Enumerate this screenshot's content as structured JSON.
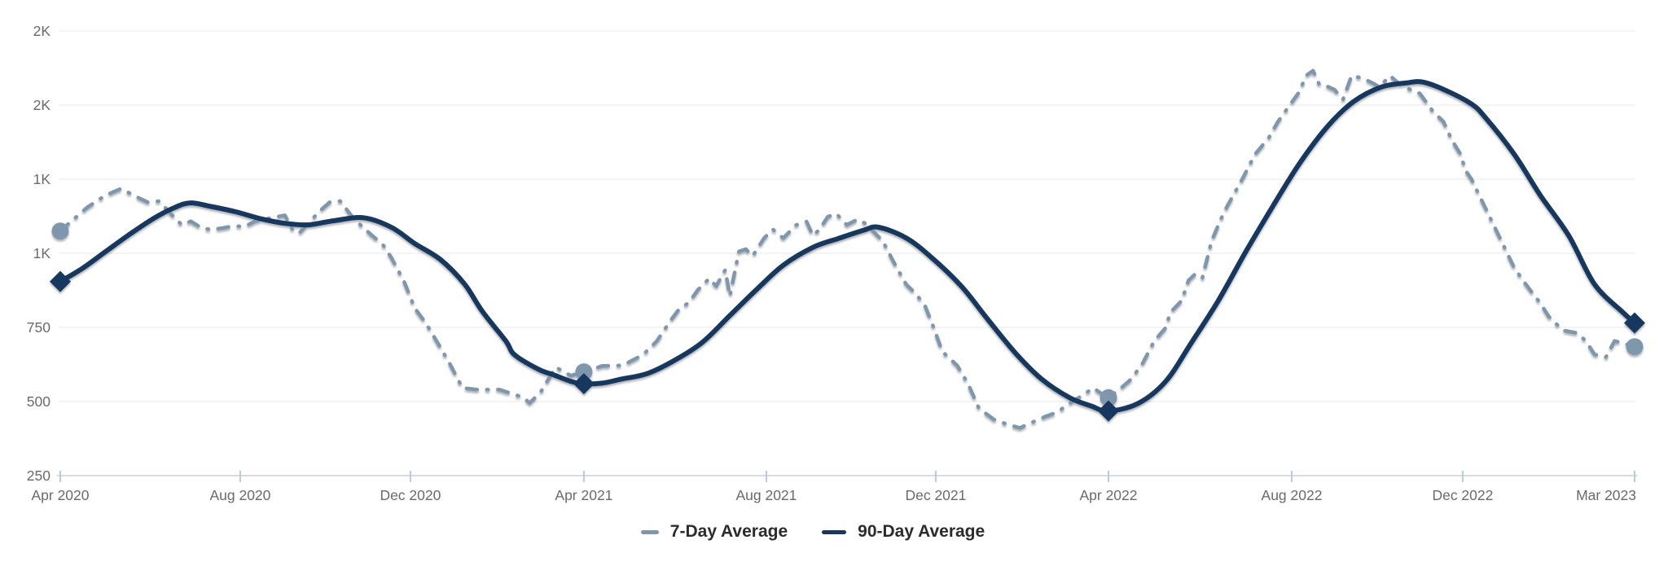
{
  "chart_data": {
    "type": "line",
    "title": "",
    "legend_position": "bottom-center",
    "x_axis": {
      "label": "",
      "ticks": [
        {
          "label": "Apr 2020",
          "month": 0,
          "pos": 0.0
        },
        {
          "label": "Aug 2020",
          "month": 4,
          "pos": 0.1143
        },
        {
          "label": "Dec 2020",
          "month": 8,
          "pos": 0.2224
        },
        {
          "label": "Apr 2021",
          "month": 12,
          "pos": 0.3326
        },
        {
          "label": "Aug 2021",
          "month": 16,
          "pos": 0.4485
        },
        {
          "label": "Dec 2021",
          "month": 20,
          "pos": 0.5561
        },
        {
          "label": "Apr 2022",
          "month": 24,
          "pos": 0.6658
        },
        {
          "label": "Aug 2022",
          "month": 28,
          "pos": 0.7822
        },
        {
          "label": "Dec 2022",
          "month": 32,
          "pos": 0.8908
        },
        {
          "label": "Mar 2023",
          "month": 35,
          "pos": 1.0
        }
      ]
    },
    "y_axis": {
      "min": 250,
      "max": 1750,
      "grid": true,
      "ticks": [
        {
          "value": 250,
          "label": "250"
        },
        {
          "value": 500,
          "label": "500"
        },
        {
          "value": 750,
          "label": "750"
        },
        {
          "value": 1000,
          "label": "1K"
        },
        {
          "value": 1250,
          "label": "1K"
        },
        {
          "value": 1500,
          "label": "2K"
        },
        {
          "value": 1750,
          "label": "2K"
        }
      ]
    },
    "series": [
      {
        "name": "7-Day Average",
        "style": "dashed",
        "color": "#7e97ac",
        "marker_shape": "circle",
        "markers": [
          [
            0,
            1075
          ],
          [
            12,
            600
          ],
          [
            24,
            513
          ],
          [
            35,
            685
          ]
        ],
        "points": [
          [
            0,
            1075
          ],
          [
            0.3,
            1115
          ],
          [
            0.6,
            1155
          ],
          [
            1.0,
            1195
          ],
          [
            1.35,
            1218
          ],
          [
            1.7,
            1190
          ],
          [
            1.95,
            1172
          ],
          [
            2.2,
            1176
          ],
          [
            2.45,
            1135
          ],
          [
            2.7,
            1096
          ],
          [
            2.9,
            1108
          ],
          [
            3.15,
            1085
          ],
          [
            3.35,
            1080
          ],
          [
            3.6,
            1085
          ],
          [
            3.85,
            1092
          ],
          [
            4.1,
            1090
          ],
          [
            4.35,
            1108
          ],
          [
            4.6,
            1116
          ],
          [
            4.85,
            1123
          ],
          [
            5.05,
            1128
          ],
          [
            5.25,
            1075
          ],
          [
            5.4,
            1070
          ],
          [
            5.65,
            1108
          ],
          [
            5.85,
            1140
          ],
          [
            6.1,
            1172
          ],
          [
            6.35,
            1176
          ],
          [
            6.65,
            1120
          ],
          [
            6.9,
            1086
          ],
          [
            7.1,
            1060
          ],
          [
            7.35,
            1030
          ],
          [
            7.55,
            986
          ],
          [
            7.85,
            905
          ],
          [
            8.1,
            815
          ],
          [
            8.35,
            766
          ],
          [
            8.6,
            705
          ],
          [
            8.9,
            630
          ],
          [
            9.2,
            546
          ],
          [
            9.55,
            540
          ],
          [
            10.05,
            540
          ],
          [
            10.35,
            526
          ],
          [
            10.6,
            514
          ],
          [
            10.75,
            495
          ],
          [
            11.0,
            531
          ],
          [
            11.35,
            616
          ],
          [
            11.7,
            587
          ],
          [
            12.0,
            600
          ],
          [
            12.4,
            620
          ],
          [
            12.85,
            622
          ],
          [
            13.3,
            658
          ],
          [
            13.6,
            704
          ],
          [
            13.9,
            773
          ],
          [
            14.1,
            814
          ],
          [
            14.3,
            833
          ],
          [
            14.5,
            877
          ],
          [
            14.75,
            915
          ],
          [
            14.9,
            889
          ],
          [
            15.1,
            944
          ],
          [
            15.2,
            855
          ],
          [
            15.4,
            1006
          ],
          [
            15.55,
            1014
          ],
          [
            15.7,
            991
          ],
          [
            15.95,
            1051
          ],
          [
            16.15,
            1081
          ],
          [
            16.4,
            1051
          ],
          [
            16.7,
            1095
          ],
          [
            16.95,
            1107
          ],
          [
            17.1,
            1060
          ],
          [
            17.25,
            1079
          ],
          [
            17.45,
            1123
          ],
          [
            17.65,
            1134
          ],
          [
            17.9,
            1096
          ],
          [
            18.15,
            1114
          ],
          [
            18.35,
            1100
          ],
          [
            18.75,
            1041
          ],
          [
            19.05,
            959
          ],
          [
            19.3,
            896
          ],
          [
            19.55,
            860
          ],
          [
            19.75,
            822
          ],
          [
            19.95,
            750
          ],
          [
            20.15,
            669
          ],
          [
            20.5,
            621
          ],
          [
            20.75,
            559
          ],
          [
            21.0,
            477
          ],
          [
            21.35,
            439
          ],
          [
            21.7,
            421
          ],
          [
            21.95,
            411
          ],
          [
            22.25,
            431
          ],
          [
            22.55,
            450
          ],
          [
            22.8,
            463
          ],
          [
            23.1,
            494
          ],
          [
            23.4,
            521
          ],
          [
            23.65,
            546
          ],
          [
            23.9,
            520
          ],
          [
            24.0,
            513
          ],
          [
            24.3,
            549
          ],
          [
            24.5,
            576
          ],
          [
            24.75,
            630
          ],
          [
            25.0,
            704
          ],
          [
            25.25,
            749
          ],
          [
            25.35,
            800
          ],
          [
            25.6,
            841
          ],
          [
            25.75,
            909
          ],
          [
            25.9,
            931
          ],
          [
            26.05,
            917
          ],
          [
            26.25,
            1041
          ],
          [
            26.45,
            1114
          ],
          [
            26.6,
            1161
          ],
          [
            26.9,
            1244
          ],
          [
            27.2,
            1334
          ],
          [
            27.5,
            1390
          ],
          [
            27.7,
            1444
          ],
          [
            27.95,
            1498
          ],
          [
            28.15,
            1539
          ],
          [
            28.35,
            1601
          ],
          [
            28.5,
            1616
          ],
          [
            28.65,
            1568
          ],
          [
            28.8,
            1565
          ],
          [
            29.0,
            1552
          ],
          [
            29.2,
            1519
          ],
          [
            29.4,
            1599
          ],
          [
            29.65,
            1591
          ],
          [
            29.9,
            1574
          ],
          [
            30.05,
            1561
          ],
          [
            30.3,
            1599
          ],
          [
            30.55,
            1567
          ],
          [
            30.75,
            1554
          ],
          [
            31.0,
            1539
          ],
          [
            31.3,
            1479
          ],
          [
            31.55,
            1444
          ],
          [
            31.75,
            1381
          ],
          [
            31.95,
            1334
          ],
          [
            32.05,
            1279
          ],
          [
            32.15,
            1251
          ],
          [
            32.4,
            1151
          ],
          [
            32.65,
            1051
          ],
          [
            32.9,
            951
          ],
          [
            33.1,
            896
          ],
          [
            33.35,
            833
          ],
          [
            33.5,
            787
          ],
          [
            33.75,
            740
          ],
          [
            34.0,
            731
          ],
          [
            34.15,
            704
          ],
          [
            34.3,
            659
          ],
          [
            34.5,
            650
          ],
          [
            34.65,
            704
          ],
          [
            34.85,
            694
          ],
          [
            35,
            685
          ]
        ]
      },
      {
        "name": "90-Day Average",
        "style": "solid",
        "color": "#17395f",
        "marker_shape": "diamond",
        "markers": [
          [
            0,
            905
          ],
          [
            12,
            560
          ],
          [
            24,
            468
          ],
          [
            35,
            765
          ]
        ],
        "points": [
          [
            0,
            905
          ],
          [
            0.5,
            950
          ],
          [
            1.0,
            1005
          ],
          [
            1.55,
            1065
          ],
          [
            2.1,
            1120
          ],
          [
            2.55,
            1155
          ],
          [
            2.9,
            1170
          ],
          [
            3.35,
            1158
          ],
          [
            3.9,
            1140
          ],
          [
            4.5,
            1116
          ],
          [
            5.05,
            1101
          ],
          [
            5.6,
            1096
          ],
          [
            6.2,
            1110
          ],
          [
            6.9,
            1120
          ],
          [
            7.55,
            1088
          ],
          [
            8.1,
            1033
          ],
          [
            8.7,
            978
          ],
          [
            9.25,
            896
          ],
          [
            9.65,
            806
          ],
          [
            10.2,
            704
          ],
          [
            10.4,
            658
          ],
          [
            10.95,
            609
          ],
          [
            11.3,
            590
          ],
          [
            11.7,
            568
          ],
          [
            12.0,
            560
          ],
          [
            12.4,
            562
          ],
          [
            12.8,
            575
          ],
          [
            13.4,
            595
          ],
          [
            14.0,
            640
          ],
          [
            14.6,
            700
          ],
          [
            15.2,
            790
          ],
          [
            15.8,
            880
          ],
          [
            16.4,
            960
          ],
          [
            17.1,
            1020
          ],
          [
            17.7,
            1050
          ],
          [
            18.3,
            1078
          ],
          [
            18.65,
            1088
          ],
          [
            19.3,
            1052
          ],
          [
            19.9,
            986
          ],
          [
            20.6,
            888
          ],
          [
            21.2,
            778
          ],
          [
            21.85,
            663
          ],
          [
            22.45,
            576
          ],
          [
            23.1,
            513
          ],
          [
            23.6,
            485
          ],
          [
            24.0,
            468
          ],
          [
            24.65,
            494
          ],
          [
            25.25,
            568
          ],
          [
            25.8,
            696
          ],
          [
            26.4,
            841
          ],
          [
            27.0,
            1006
          ],
          [
            27.6,
            1162
          ],
          [
            28.2,
            1307
          ],
          [
            28.85,
            1430
          ],
          [
            29.45,
            1512
          ],
          [
            30.1,
            1561
          ],
          [
            30.7,
            1575
          ],
          [
            31.05,
            1578
          ],
          [
            31.55,
            1553
          ],
          [
            32.15,
            1504
          ],
          [
            32.4,
            1457
          ],
          [
            32.9,
            1334
          ],
          [
            33.35,
            1197
          ],
          [
            33.85,
            1060
          ],
          [
            34.3,
            896
          ],
          [
            34.8,
            800
          ],
          [
            35,
            765
          ]
        ]
      }
    ]
  },
  "colors": {
    "background": "#ffffff",
    "grid": "#e9e9e9",
    "axis_line": "#cfcfcf",
    "tick_mark": "#b8cbe5",
    "axis_text": "#6a6a6a",
    "legend_text": "#2b2b2b"
  }
}
